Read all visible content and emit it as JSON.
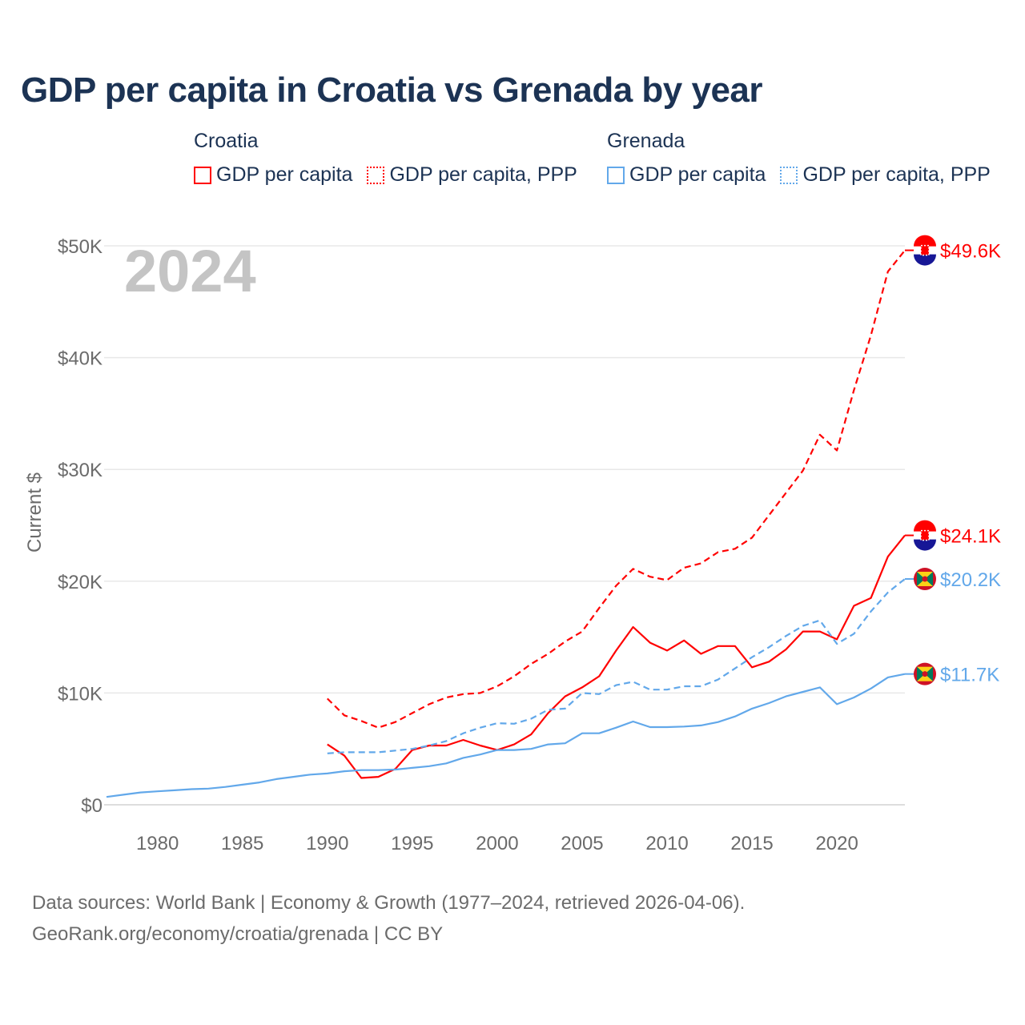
{
  "chart_data": {
    "type": "line",
    "title": "GDP per capita in Croatia vs Grenada by year",
    "ylabel": "Current $",
    "xlabel": "",
    "xlim": [
      1977,
      2024
    ],
    "ylim": [
      0,
      50000
    ],
    "grid": true,
    "highlight_year": "2024",
    "x_ticks": [
      "1980",
      "1985",
      "1990",
      "1995",
      "2000",
      "2005",
      "2010",
      "2015",
      "2020"
    ],
    "x_tick_values": [
      1980,
      1985,
      1990,
      1995,
      2000,
      2005,
      2010,
      2015,
      2020
    ],
    "y_ticks": [
      "$0",
      "$10K",
      "$20K",
      "$30K",
      "$40K",
      "$50K"
    ],
    "y_tick_values": [
      0,
      10000,
      20000,
      30000,
      40000,
      50000
    ],
    "legend": {
      "placement": "top",
      "groups": [
        {
          "name": "Croatia",
          "items": [
            "GDP per capita",
            "GDP per capita, PPP"
          ]
        },
        {
          "name": "Grenada",
          "items": [
            "GDP per capita",
            "GDP per capita, PPP"
          ]
        }
      ]
    },
    "series": [
      {
        "name": "Croatia GDP per capita",
        "color": "#ff0000",
        "dash": false,
        "end_label": "$24.1K",
        "flag": "croatia",
        "start": 1990,
        "values": [
          5.4,
          4.4,
          2.4,
          2.5,
          3.2,
          4.9,
          5.3,
          5.3,
          5.8,
          5.3,
          4.9,
          5.4,
          6.3,
          8.2,
          9.7,
          10.5,
          11.5,
          13.8,
          15.9,
          14.5,
          13.8,
          14.7,
          13.5,
          14.2,
          14.2,
          12.3,
          12.8,
          13.9,
          15.5,
          15.5,
          14.8,
          17.8,
          18.5,
          22.2,
          24.1
        ]
      },
      {
        "name": "Croatia GDP per capita, PPP",
        "color": "#ff0000",
        "dash": true,
        "end_label": "$49.6K",
        "flag": "croatia",
        "start": 1990,
        "values": [
          9.5,
          8.0,
          7.5,
          6.9,
          7.4,
          8.2,
          9.0,
          9.6,
          9.9,
          10.0,
          10.6,
          11.5,
          12.6,
          13.5,
          14.6,
          15.5,
          17.6,
          19.6,
          21.1,
          20.4,
          20.1,
          21.2,
          21.6,
          22.6,
          22.9,
          23.9,
          25.9,
          27.9,
          29.9,
          33.1,
          31.7,
          37.1,
          42.0,
          47.7,
          49.6
        ]
      },
      {
        "name": "Grenada GDP per capita",
        "color": "#62a8ea",
        "dash": false,
        "end_label": "$11.7K",
        "flag": "grenada",
        "start": 1977,
        "values": [
          0.7,
          0.9,
          1.1,
          1.2,
          1.3,
          1.4,
          1.45,
          1.6,
          1.8,
          2.0,
          2.3,
          2.5,
          2.7,
          2.8,
          3.0,
          3.1,
          3.1,
          3.15,
          3.3,
          3.45,
          3.7,
          4.2,
          4.5,
          4.9,
          4.9,
          5.0,
          5.4,
          5.5,
          6.4,
          6.4,
          6.9,
          7.45,
          6.95,
          6.95,
          7.0,
          7.1,
          7.4,
          7.9,
          8.6,
          9.1,
          9.7,
          10.1,
          10.5,
          9.0,
          9.6,
          10.4,
          11.4,
          11.7
        ]
      },
      {
        "name": "Grenada GDP per capita, PPP",
        "color": "#62a8ea",
        "dash": true,
        "end_label": "$20.2K",
        "flag": "grenada",
        "start": 1990,
        "values": [
          4.6,
          4.7,
          4.7,
          4.7,
          4.85,
          5.0,
          5.3,
          5.7,
          6.4,
          6.9,
          7.3,
          7.25,
          7.7,
          8.5,
          8.6,
          10.0,
          9.9,
          10.7,
          11.0,
          10.3,
          10.3,
          10.6,
          10.6,
          11.2,
          12.2,
          13.2,
          14.1,
          15.1,
          16.0,
          16.5,
          14.4,
          15.3,
          17.3,
          19.0,
          20.2
        ]
      }
    ],
    "value_unit": "thousand USD"
  },
  "footer": {
    "line1": "Data sources: World Bank | Economy & Growth (1977–2024, retrieved 2026-04-06).",
    "line2": "GeoRank.org/economy/croatia/grenada | CC BY"
  }
}
